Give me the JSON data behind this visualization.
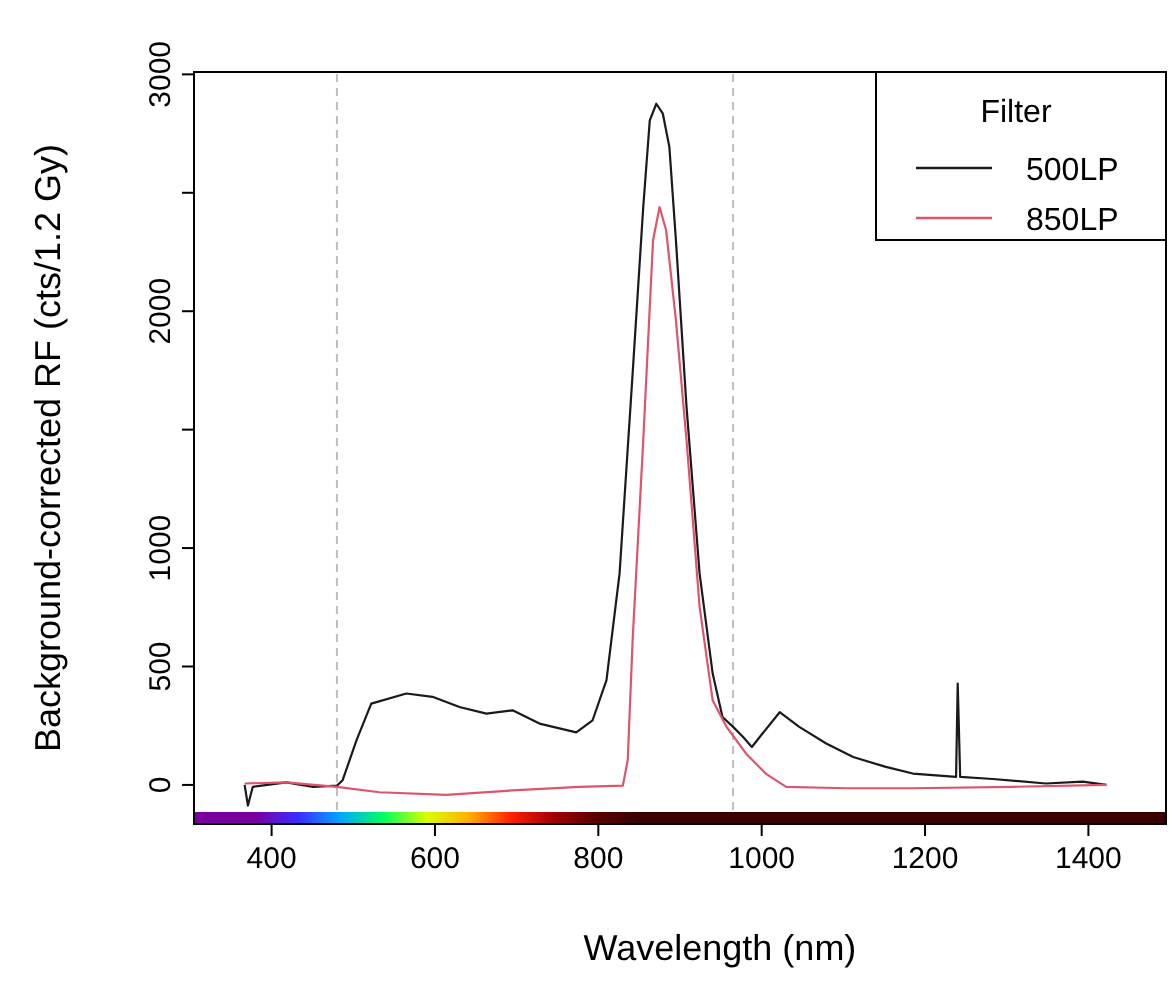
{
  "chart_data": {
    "type": "line",
    "xlabel": "Wavelength (nm)",
    "ylabel": "Background-corrected RF (cts/1.2 Gy)",
    "xlim": [
      305,
      1495
    ],
    "xticks": [
      400,
      600,
      800,
      1000,
      1200,
      1400
    ],
    "ylim": [
      -165,
      3010
    ],
    "yticks": [
      0,
      500,
      1000,
      {
        "value": 1500,
        "label": null
      },
      2000,
      {
        "value": 2500,
        "label": null
      },
      3000
    ],
    "grid": false,
    "legend": "top right",
    "legend_title": "Filter",
    "line_style": "solid",
    "marker": "none",
    "ref_lines": [
      {
        "axis": "x",
        "value": 480,
        "label": null,
        "color": "#bebebe",
        "line_style": "dashed"
      },
      {
        "axis": "x",
        "value": 965,
        "label": null,
        "color": "#bebebe",
        "line_style": "dashed"
      }
    ],
    "series": [
      {
        "name": "500LP",
        "color": "#1a1a1a",
        "x": [
          367,
          371,
          377,
          418,
          451,
          480,
          487,
          504,
          522,
          565,
          597,
          630,
          663,
          695,
          728,
          773,
          793,
          810,
          826,
          842,
          855,
          863,
          871,
          879,
          887,
          895,
          908,
          924,
          940,
          952,
          965,
          977,
          988,
          1001,
          1022,
          1046,
          1079,
          1112,
          1152,
          1185,
          1238,
          1240,
          1243,
          1283,
          1348,
          1393,
          1422
        ],
        "values": [
          0,
          -87,
          -8,
          11,
          -8,
          -3,
          20,
          189,
          343,
          386,
          372,
          329,
          301,
          315,
          259,
          222,
          273,
          442,
          892,
          1737,
          2440,
          2806,
          2876,
          2834,
          2693,
          2300,
          1596,
          892,
          470,
          287,
          245,
          203,
          160,
          217,
          307,
          245,
          175,
          118,
          76,
          48,
          34,
          428,
          34,
          25,
          6,
          14,
          0
        ]
      },
      {
        "name": "850LP",
        "color": "#df536b",
        "x": [
          367,
          418,
          480,
          532,
          614,
          695,
          777,
          830,
          836,
          842,
          855,
          867,
          875,
          883,
          895,
          908,
          924,
          940,
          957,
          981,
          1005,
          1030,
          1103,
          1185,
          1307,
          1422
        ],
        "values": [
          6,
          11,
          -8,
          -31,
          -42,
          -23,
          -8,
          -3,
          104,
          611,
          1455,
          2300,
          2440,
          2342,
          1962,
          1455,
          752,
          357,
          245,
          132,
          48,
          -8,
          -14,
          -14,
          -8,
          0
        ]
      }
    ]
  }
}
